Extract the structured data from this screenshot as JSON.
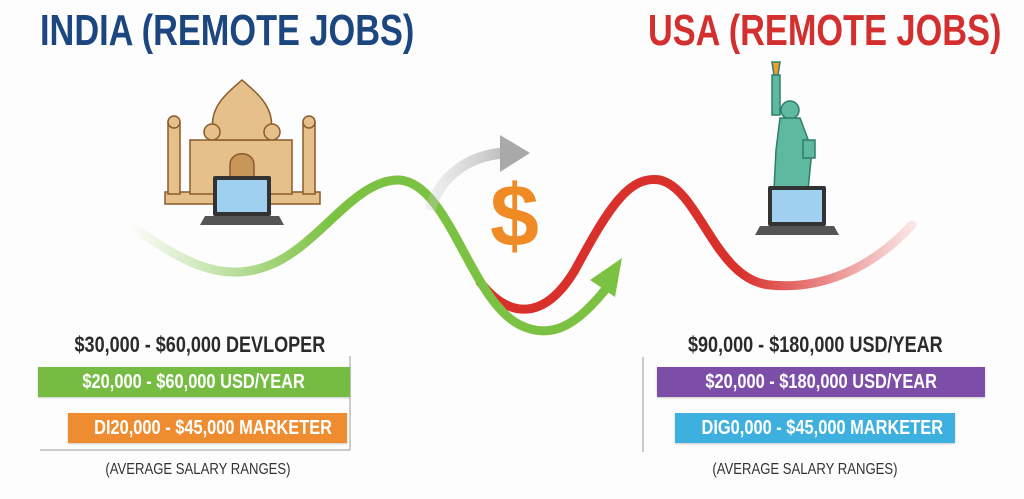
{
  "india": {
    "title": "INDIA (REMOTE JOBS)",
    "title_color": "#1c4680",
    "headline": "$30,000 - $60,000 DEVLOPER",
    "bar1": {
      "text": "$20,000 - $60,000 USD/YEAR",
      "color": "#76bc43"
    },
    "bar2": {
      "text": "DI20,000 - $45,000 MARKETER",
      "color": "#ef8c30"
    },
    "caption": "(AVERAGE SALARY RANGES)",
    "icons": [
      "taj-mahal-icon",
      "laptop-icon"
    ],
    "curve_color": "#7cc242"
  },
  "usa": {
    "title": "USA (REMOTE JOBS)",
    "title_color": "#d32f2f",
    "headline": "$90,000 - $180,000 USD/YEAR",
    "bar1": {
      "text": "$20,000 - $180,000 USD/YEAR",
      "color": "#7d4ea8"
    },
    "bar2": {
      "text": "DIG0,000 - $45,000 MARKETER",
      "color": "#3db0e0"
    },
    "caption": "(AVERAGE SALARY RANGES)",
    "icons": [
      "statue-of-liberty-icon",
      "laptop-icon"
    ],
    "curve_color": "#d9302c"
  },
  "center": {
    "symbol": "$",
    "symbol_color": "#f08a24",
    "arrow_color": "#b5b5b5"
  }
}
